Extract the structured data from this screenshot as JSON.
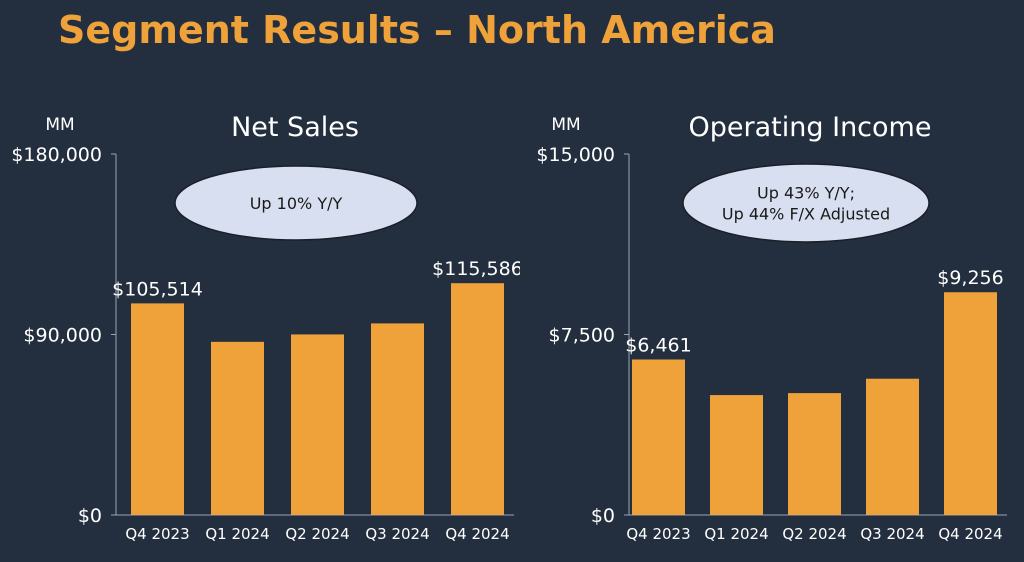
{
  "page": {
    "title": "Segment Results – North America"
  },
  "chart_data": [
    {
      "type": "bar",
      "title": "Net Sales",
      "unit": "MM",
      "categories": [
        "Q4 2023",
        "Q1 2024",
        "Q2 2024",
        "Q3 2024",
        "Q4 2024"
      ],
      "values": [
        105514,
        86341,
        90033,
        95537,
        115586
      ],
      "data_labels": [
        "$105,514",
        "",
        "",
        "",
        "$115,586"
      ],
      "ylim": [
        0,
        180000
      ],
      "yticks": [
        "$0",
        "$90,000",
        "$180,000"
      ],
      "callout": [
        "Up 10% Y/Y"
      ],
      "grid": false,
      "bar_color": "#f0a23a",
      "callout_fill": "#d8dff0"
    },
    {
      "type": "bar",
      "title": "Operating Income",
      "unit": "MM",
      "categories": [
        "Q4 2023",
        "Q1 2024",
        "Q2 2024",
        "Q3 2024",
        "Q4 2024"
      ],
      "values": [
        6461,
        4983,
        5065,
        5663,
        9256
      ],
      "data_labels": [
        "$6,461",
        "",
        "",
        "",
        "$9,256"
      ],
      "ylim": [
        0,
        15000
      ],
      "yticks": [
        "$0",
        "$7,500",
        "$15,000"
      ],
      "callout": [
        "Up 43% Y/Y;",
        "Up 44% F/X Adjusted"
      ],
      "grid": false,
      "bar_color": "#f0a23a",
      "callout_fill": "#d8dff0"
    }
  ]
}
